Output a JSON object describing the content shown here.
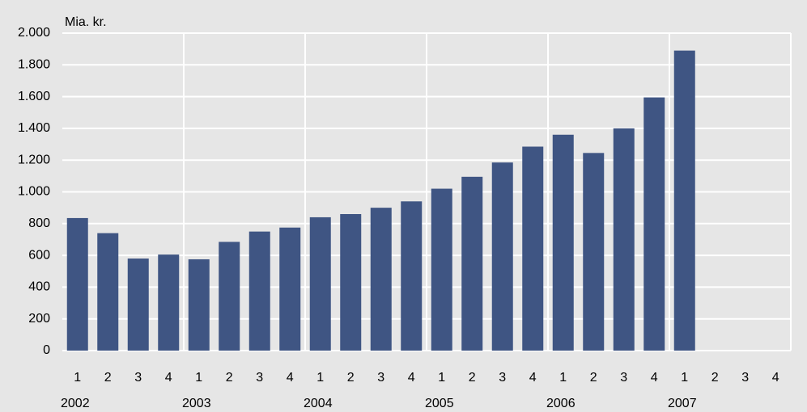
{
  "chart_data": {
    "type": "bar",
    "y_label": "Mia. kr.",
    "categories": [
      "1",
      "2",
      "3",
      "4",
      "1",
      "2",
      "3",
      "4",
      "1",
      "2",
      "3",
      "4",
      "1",
      "2",
      "3",
      "4",
      "1",
      "2",
      "3",
      "4",
      "1",
      "2",
      "3",
      "4"
    ],
    "years": [
      "2002",
      "2003",
      "2004",
      "2005",
      "2006",
      "2007"
    ],
    "values": [
      835,
      740,
      580,
      605,
      575,
      685,
      750,
      775,
      840,
      860,
      900,
      940,
      1020,
      1095,
      1185,
      1285,
      1360,
      1245,
      1400,
      1595,
      1890,
      null,
      null,
      null
    ],
    "color": "#3f5583",
    "ylim": [
      0,
      2000
    ],
    "yticks": [
      0,
      200,
      400,
      600,
      800,
      {
        "value": 1000,
        "label": "1.000"
      },
      {
        "value": 1200,
        "label": "1.200"
      },
      {
        "value": 1400,
        "label": "1.400"
      },
      {
        "value": 1600,
        "label": "1.600"
      },
      {
        "value": 1800,
        "label": "1.800"
      },
      {
        "value": 2000,
        "label": "2.000"
      }
    ],
    "grid": true
  }
}
